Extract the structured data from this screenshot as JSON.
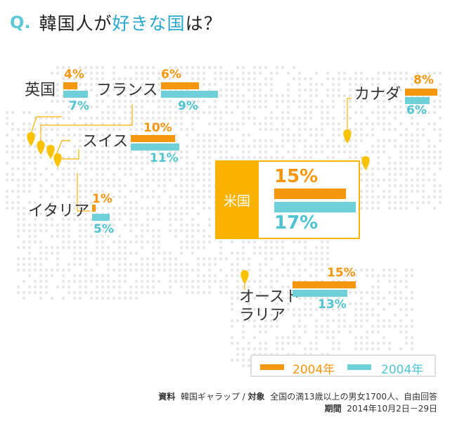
{
  "title": {
    "q": "Q.",
    "pre": "韓国人が",
    "highlight": "好きな国",
    "post": "は？"
  },
  "usa_label": "米国",
  "legend": {
    "items": [
      {
        "label": "2004年",
        "color": "#f5960f"
      },
      {
        "label": "2004年",
        "color": "#6fd0da"
      }
    ]
  },
  "source": {
    "line1_key": "資料",
    "line1_val": "韓国ギャラップ",
    "sep": " / ",
    "line1_key2": "対象",
    "line1_val2": "全国の満13歳以上の男女1700人、自由回答",
    "line2_key": "期間",
    "line2_val": "2014年10月2日－29日"
  },
  "colors": {
    "orange": "#f5960f",
    "blue": "#6fd0da",
    "usa_yellow": "#f9b200",
    "map_dot": "#e6e6e6",
    "pin": "#f9c200"
  },
  "chart_data": {
    "type": "bar",
    "title": "韓国人が好きな国は？",
    "categories": [
      "英国",
      "フランス",
      "スイス",
      "イタリア",
      "米国",
      "カナダ",
      "オーストラリア"
    ],
    "series": [
      {
        "name": "2004年",
        "values": [
          4,
          6,
          10,
          1,
          15,
          8,
          15
        ],
        "labels": [
          "4%",
          "6%",
          "10%",
          "1%",
          "15%",
          "8%",
          "15%"
        ]
      },
      {
        "name": "2004年",
        "values": [
          7,
          9,
          11,
          5,
          17,
          6,
          13
        ],
        "labels": [
          "7%",
          "9%",
          "11%",
          "5%",
          "17%",
          "6%",
          "13%"
        ]
      }
    ],
    "legend": "bottom-right"
  }
}
